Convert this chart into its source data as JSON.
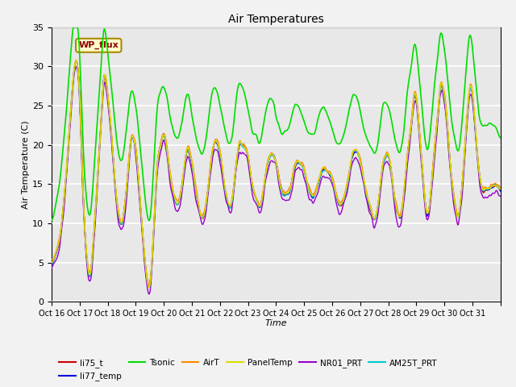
{
  "title": "Air Temperatures",
  "xlabel": "Time",
  "ylabel": "Air Temperature (C)",
  "ylim": [
    0,
    35
  ],
  "series": {
    "li75_t": {
      "color": "#cc0000",
      "lw": 1.0
    },
    "li77_temp": {
      "color": "#0000dd",
      "lw": 1.0
    },
    "Tsonic": {
      "color": "#00dd00",
      "lw": 1.2
    },
    "AirT": {
      "color": "#ff8800",
      "lw": 1.0
    },
    "PanelTemp": {
      "color": "#dddd00",
      "lw": 1.0
    },
    "NR01_PRT": {
      "color": "#9900cc",
      "lw": 1.0
    },
    "AM25T_PRT": {
      "color": "#00cccc",
      "lw": 1.0
    }
  },
  "xtick_labels": [
    "Oct 16",
    "Oct 17",
    "Oct 18",
    "Oct 19",
    "Oct 20",
    "Oct 21",
    "Oct 22",
    "Oct 23",
    "Oct 24",
    "Oct 25",
    "Oct 26",
    "Oct 27",
    "Oct 28",
    "Oct 29",
    "Oct 30",
    "Oct 31",
    ""
  ],
  "annotation_text": "WP_flux",
  "plot_bg_color": "#e8e8e8",
  "fig_bg_color": "#f2f2f2"
}
